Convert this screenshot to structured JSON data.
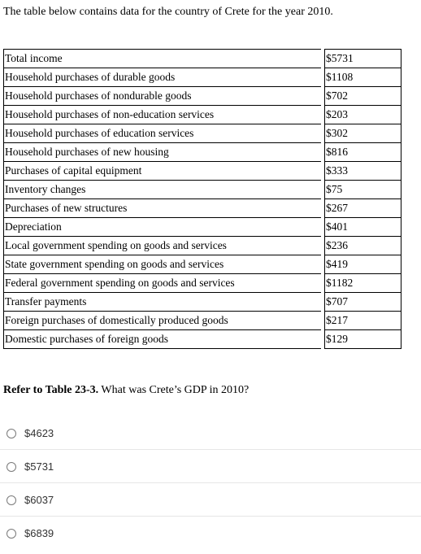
{
  "intro_text": "The table below contains data for the country of Crete for the year 2010.",
  "table": {
    "rows": [
      {
        "label": "Total income",
        "value": "$5731"
      },
      {
        "label": "Household purchases of durable goods",
        "value": "$1108"
      },
      {
        "label": "Household purchases of nondurable goods",
        "value": "$702"
      },
      {
        "label": "Household purchases of non-education services",
        "value": "$203"
      },
      {
        "label": "Household purchases of education services",
        "value": "$302"
      },
      {
        "label": "Household purchases of new housing",
        "value": "$816"
      },
      {
        "label": "Purchases of capital equipment",
        "value": "$333"
      },
      {
        "label": "Inventory changes",
        "value": "$75"
      },
      {
        "label": "Purchases of new structures",
        "value": "$267"
      },
      {
        "label": "Depreciation",
        "value": "$401"
      },
      {
        "label": "Local government spending on goods and services",
        "value": "$236"
      },
      {
        "label": "State government spending on goods and services",
        "value": "$419"
      },
      {
        "label": "Federal government spending on goods and services",
        "value": "$1182"
      },
      {
        "label": "Transfer payments",
        "value": "$707"
      },
      {
        "label": "Foreign purchases of domestically produced goods",
        "value": "$217"
      },
      {
        "label": "Domestic purchases of foreign goods",
        "value": "$129"
      }
    ]
  },
  "question": {
    "ref": "Refer to Table 23-3.",
    "text": " What was Crete’s GDP in 2010?"
  },
  "options": [
    "$4623",
    "$5731",
    "$6037",
    "$6839"
  ]
}
